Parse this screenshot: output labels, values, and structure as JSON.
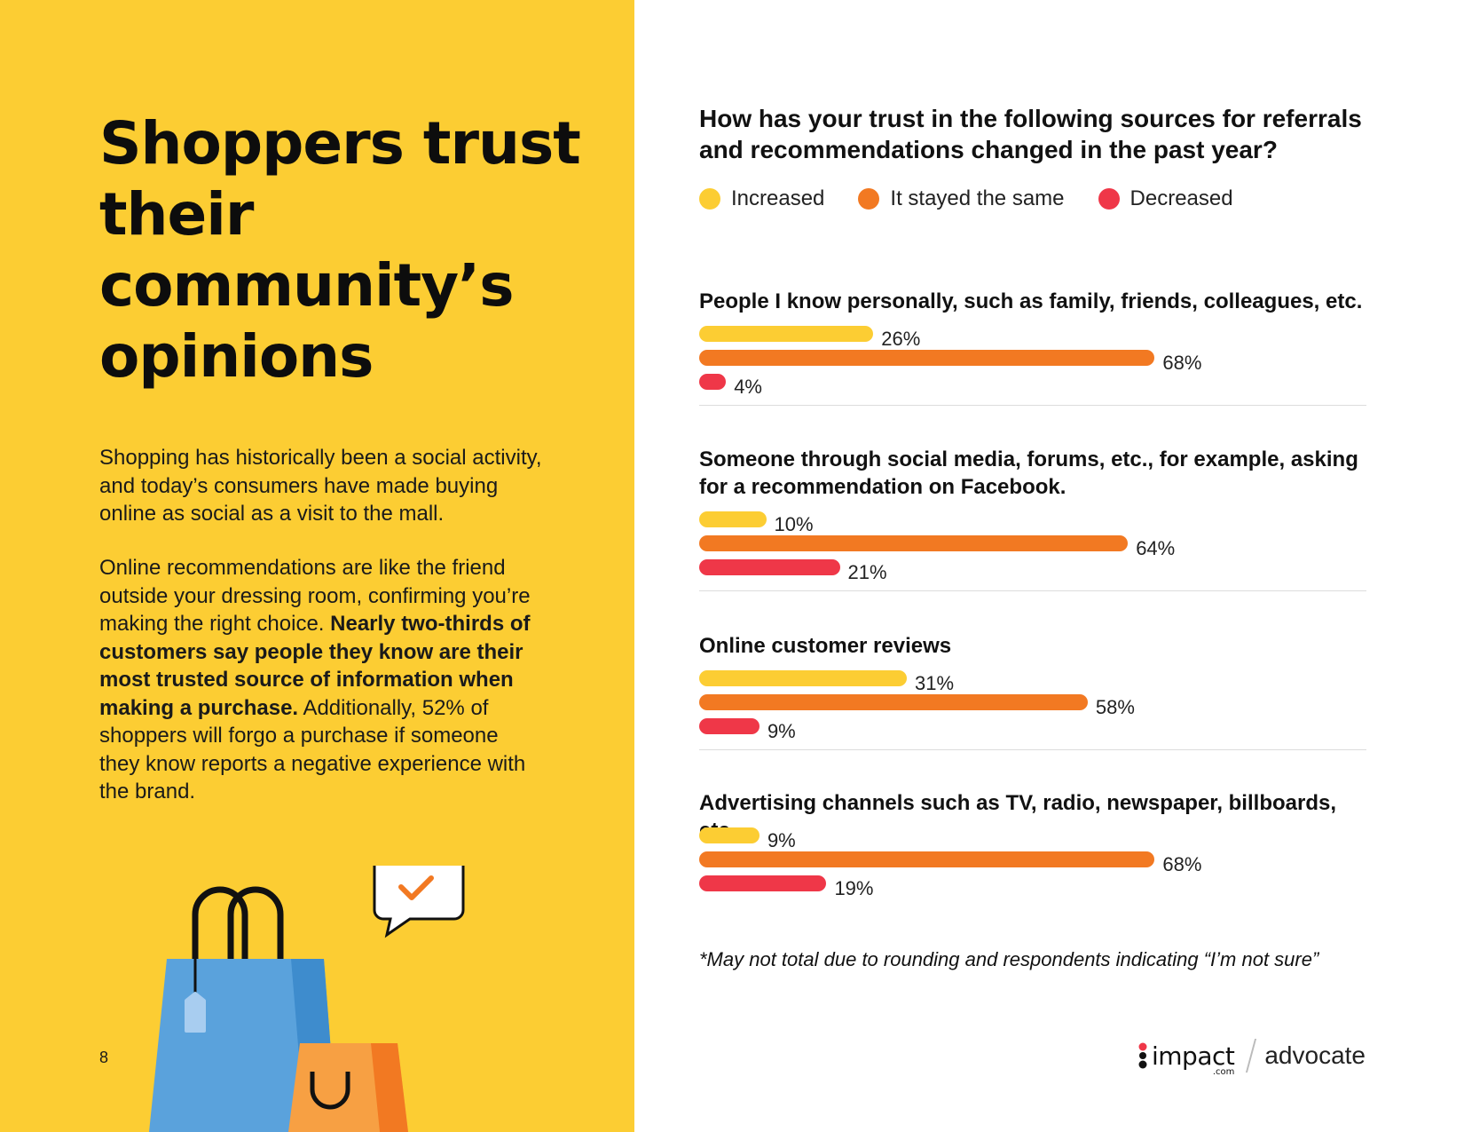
{
  "left_panel": {
    "headline": "Shoppers trust their community’s opinions",
    "para1": "Shopping has historically been a social activity, and today’s consumers have made buying online as social as a visit to the mall.",
    "para2_start": "Online recommendations are like the friend outside your dressing room, confirming you’re making the right choice. ",
    "para2_bold": "Nearly two-thirds of customers say people they know are their most trusted source of information when making a purchase.",
    "para2_end": " Additionally, 52% of shoppers will forgo a purchase if someone they know reports a negative experience with the brand.",
    "page_number": "8",
    "accent": "#fccd33"
  },
  "chart_data": {
    "type": "bar",
    "orientation": "horizontal",
    "title": "How has your trust in the following sources for referrals and recommendations changed in the past year?",
    "legend_position": "top",
    "unit": "%",
    "categories": [
      "People I know personally, such as family, friends, colleagues, etc.",
      "Someone through social media, forums, etc., for example, asking for a recommendation on Facebook.",
      "Online customer reviews",
      "Advertising channels such as TV, radio, newspaper, billboards, etc."
    ],
    "series": [
      {
        "name": "Increased",
        "color": "#fccd33",
        "values": [
          26,
          10,
          31,
          9
        ]
      },
      {
        "name": "It stayed the same",
        "color": "#f27922",
        "values": [
          68,
          64,
          58,
          68
        ]
      },
      {
        "name": "Decreased",
        "color": "#ef3748",
        "values": [
          4,
          21,
          9,
          19
        ]
      }
    ],
    "footnote": "*May not total due to rounding and respondents indicating “I’m not sure”"
  },
  "logo": {
    "brand": "impact",
    "brand_suffix": ".com",
    "product": "advocate"
  }
}
